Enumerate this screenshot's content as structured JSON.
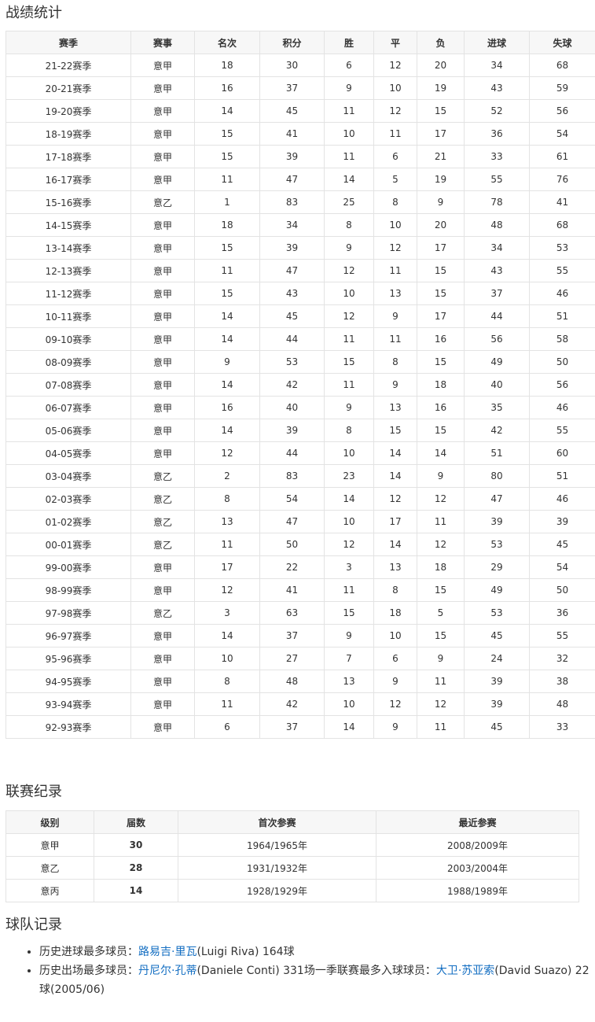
{
  "sections": {
    "stats_title": "战绩统计",
    "league_title": "联赛纪录",
    "team_title": "球队记录"
  },
  "stats_table": {
    "headers": [
      "赛季",
      "赛事",
      "名次",
      "积分",
      "胜",
      "平",
      "负",
      "进球",
      "失球"
    ],
    "rows": [
      [
        "21-22赛季",
        "意甲",
        "18",
        "30",
        "6",
        "12",
        "20",
        "34",
        "68"
      ],
      [
        "20-21赛季",
        "意甲",
        "16",
        "37",
        "9",
        "10",
        "19",
        "43",
        "59"
      ],
      [
        "19-20赛季",
        "意甲",
        "14",
        "45",
        "11",
        "12",
        "15",
        "52",
        "56"
      ],
      [
        "18-19赛季",
        "意甲",
        "15",
        "41",
        "10",
        "11",
        "17",
        "36",
        "54"
      ],
      [
        "17-18赛季",
        "意甲",
        "15",
        "39",
        "11",
        "6",
        "21",
        "33",
        "61"
      ],
      [
        "16-17赛季",
        "意甲",
        "11",
        "47",
        "14",
        "5",
        "19",
        "55",
        "76"
      ],
      [
        "15-16赛季",
        "意乙",
        "1",
        "83",
        "25",
        "8",
        "9",
        "78",
        "41"
      ],
      [
        "14-15赛季",
        "意甲",
        "18",
        "34",
        "8",
        "10",
        "20",
        "48",
        "68"
      ],
      [
        "13-14赛季",
        "意甲",
        "15",
        "39",
        "9",
        "12",
        "17",
        "34",
        "53"
      ],
      [
        "12-13赛季",
        "意甲",
        "11",
        "47",
        "12",
        "11",
        "15",
        "43",
        "55"
      ],
      [
        "11-12赛季",
        "意甲",
        "15",
        "43",
        "10",
        "13",
        "15",
        "37",
        "46"
      ],
      [
        "10-11赛季",
        "意甲",
        "14",
        "45",
        "12",
        "9",
        "17",
        "44",
        "51"
      ],
      [
        "09-10赛季",
        "意甲",
        "14",
        "44",
        "11",
        "11",
        "16",
        "56",
        "58"
      ],
      [
        "08-09赛季",
        "意甲",
        "9",
        "53",
        "15",
        "8",
        "15",
        "49",
        "50"
      ],
      [
        "07-08赛季",
        "意甲",
        "14",
        "42",
        "11",
        "9",
        "18",
        "40",
        "56"
      ],
      [
        "06-07赛季",
        "意甲",
        "16",
        "40",
        "9",
        "13",
        "16",
        "35",
        "46"
      ],
      [
        "05-06赛季",
        "意甲",
        "14",
        "39",
        "8",
        "15",
        "15",
        "42",
        "55"
      ],
      [
        "04-05赛季",
        "意甲",
        "12",
        "44",
        "10",
        "14",
        "14",
        "51",
        "60"
      ],
      [
        "03-04赛季",
        "意乙",
        "2",
        "83",
        "23",
        "14",
        "9",
        "80",
        "51"
      ],
      [
        "02-03赛季",
        "意乙",
        "8",
        "54",
        "14",
        "12",
        "12",
        "47",
        "46"
      ],
      [
        "01-02赛季",
        "意乙",
        "13",
        "47",
        "10",
        "17",
        "11",
        "39",
        "39"
      ],
      [
        "00-01赛季",
        "意乙",
        "11",
        "50",
        "12",
        "14",
        "12",
        "53",
        "45"
      ],
      [
        "99-00赛季",
        "意甲",
        "17",
        "22",
        "3",
        "13",
        "18",
        "29",
        "54"
      ],
      [
        "98-99赛季",
        "意甲",
        "12",
        "41",
        "11",
        "8",
        "15",
        "49",
        "50"
      ],
      [
        "97-98赛季",
        "意乙",
        "3",
        "63",
        "15",
        "18",
        "5",
        "53",
        "36"
      ],
      [
        "96-97赛季",
        "意甲",
        "14",
        "37",
        "9",
        "10",
        "15",
        "45",
        "55"
      ],
      [
        "95-96赛季",
        "意甲",
        "10",
        "27",
        "7",
        "6",
        "9",
        "24",
        "32"
      ],
      [
        "94-95赛季",
        "意甲",
        "8",
        "48",
        "13",
        "9",
        "11",
        "39",
        "38"
      ],
      [
        "93-94赛季",
        "意甲",
        "11",
        "42",
        "10",
        "12",
        "12",
        "39",
        "48"
      ],
      [
        "92-93赛季",
        "意甲",
        "6",
        "37",
        "14",
        "9",
        "11",
        "45",
        "33"
      ]
    ]
  },
  "league_table": {
    "headers": [
      "级别",
      "届数",
      "首次参赛",
      "最近参赛"
    ],
    "rows": [
      [
        "意甲",
        "30",
        "1964/1965年",
        "2008/2009年"
      ],
      [
        "意乙",
        "28",
        "1931/1932年",
        "2003/2004年"
      ],
      [
        "意丙",
        "14",
        "1928/1929年",
        "1988/1989年"
      ]
    ]
  },
  "team_records": {
    "item1": {
      "prefix": "历史进球最多球员：",
      "link": "路易吉·里瓦",
      "suffix": "(Luigi Riva) 164球"
    },
    "item2": {
      "prefix": "历史出场最多球员：",
      "link": "丹尼尔·孔蒂",
      "middle": "(Daniele Conti) 331场一季联赛最多入球球员：",
      "link2": "大卫·苏亚索",
      "suffix": "(David Suazo) 22球(2005/06)"
    }
  },
  "colors": {
    "link": "#136ec2",
    "header_bg": "#f7f7f7",
    "border": "#e3e3e3"
  }
}
